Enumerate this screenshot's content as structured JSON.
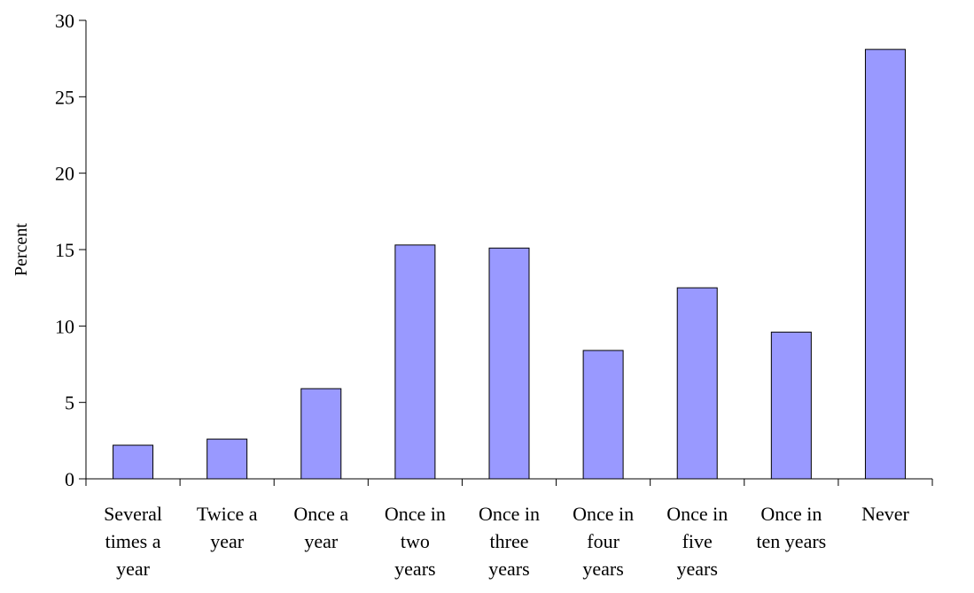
{
  "chart_data": {
    "type": "bar",
    "title": "",
    "xlabel": "",
    "ylabel": "Percent",
    "categories": [
      [
        "Several",
        "times a",
        "year"
      ],
      [
        "Twice a",
        "year"
      ],
      [
        "Once a",
        "year"
      ],
      [
        "Once in",
        "two",
        "years"
      ],
      [
        "Once in",
        "three",
        "years"
      ],
      [
        "Once in",
        "four",
        "years"
      ],
      [
        "Once in",
        "five",
        "years"
      ],
      [
        "Once in",
        "ten years"
      ],
      [
        "Never"
      ]
    ],
    "values": [
      2.2,
      2.6,
      5.9,
      15.3,
      15.1,
      8.4,
      12.5,
      9.6,
      28.1
    ],
    "ylim": [
      0,
      30
    ],
    "yticks": [
      "0",
      "5",
      "10",
      "15",
      "20",
      "25",
      "30"
    ],
    "grid": false,
    "legend": "none",
    "colors": {
      "bar_fill": "#9999ff",
      "bar_stroke": "#000000",
      "axis": "#000000"
    }
  }
}
